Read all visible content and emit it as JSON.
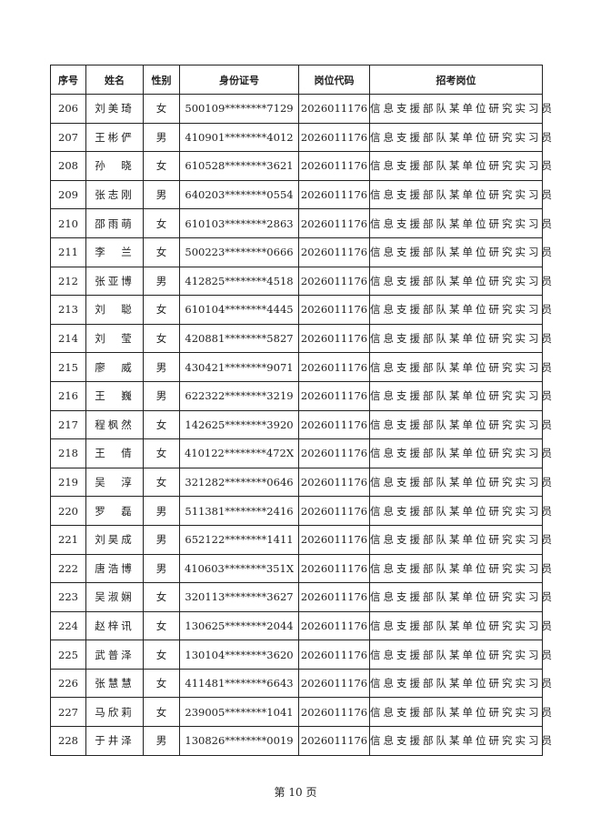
{
  "headers": [
    "序号",
    "姓名",
    "性别",
    "身份证号",
    "岗位代码",
    "招考岗位"
  ],
  "rows": [
    [
      "206",
      "刘美琦",
      "女",
      "500109********7129",
      "2026011176",
      "信息支援部队某单位研究实习员"
    ],
    [
      "207",
      "王彬俨",
      "男",
      "410901********4012",
      "2026011176",
      "信息支援部队某单位研究实习员"
    ],
    [
      "208",
      "孙　晓",
      "女",
      "610528********3621",
      "2026011176",
      "信息支援部队某单位研究实习员"
    ],
    [
      "209",
      "张志刚",
      "男",
      "640203********0554",
      "2026011176",
      "信息支援部队某单位研究实习员"
    ],
    [
      "210",
      "邵雨萌",
      "女",
      "610103********2863",
      "2026011176",
      "信息支援部队某单位研究实习员"
    ],
    [
      "211",
      "李　兰",
      "女",
      "500223********0666",
      "2026011176",
      "信息支援部队某单位研究实习员"
    ],
    [
      "212",
      "张亚博",
      "男",
      "412825********4518",
      "2026011176",
      "信息支援部队某单位研究实习员"
    ],
    [
      "213",
      "刘　聪",
      "女",
      "610104********4445",
      "2026011176",
      "信息支援部队某单位研究实习员"
    ],
    [
      "214",
      "刘　莹",
      "女",
      "420881********5827",
      "2026011176",
      "信息支援部队某单位研究实习员"
    ],
    [
      "215",
      "廖　威",
      "男",
      "430421********9071",
      "2026011176",
      "信息支援部队某单位研究实习员"
    ],
    [
      "216",
      "王　巍",
      "男",
      "622322********3219",
      "2026011176",
      "信息支援部队某单位研究实习员"
    ],
    [
      "217",
      "程枫然",
      "女",
      "142625********3920",
      "2026011176",
      "信息支援部队某单位研究实习员"
    ],
    [
      "218",
      "王　倩",
      "女",
      "410122********472X",
      "2026011176",
      "信息支援部队某单位研究实习员"
    ],
    [
      "219",
      "吴　淳",
      "女",
      "321282********0646",
      "2026011176",
      "信息支援部队某单位研究实习员"
    ],
    [
      "220",
      "罗　磊",
      "男",
      "511381********2416",
      "2026011176",
      "信息支援部队某单位研究实习员"
    ],
    [
      "221",
      "刘昊成",
      "男",
      "652122********1411",
      "2026011176",
      "信息支援部队某单位研究实习员"
    ],
    [
      "222",
      "唐浩博",
      "男",
      "410603********351X",
      "2026011176",
      "信息支援部队某单位研究实习员"
    ],
    [
      "223",
      "吴淑娴",
      "女",
      "320113********3627",
      "2026011176",
      "信息支援部队某单位研究实习员"
    ],
    [
      "224",
      "赵梓讯",
      "女",
      "130625********2044",
      "2026011176",
      "信息支援部队某单位研究实习员"
    ],
    [
      "225",
      "武普泽",
      "女",
      "130104********3620",
      "2026011176",
      "信息支援部队某单位研究实习员"
    ],
    [
      "226",
      "张慧慧",
      "女",
      "411481********6643",
      "2026011176",
      "信息支援部队某单位研究实习员"
    ],
    [
      "227",
      "马欣莉",
      "女",
      "239005********1041",
      "2026011176",
      "信息支援部队某单位研究实习员"
    ],
    [
      "228",
      "于井泽",
      "男",
      "130826********0019",
      "2026011176",
      "信息支援部队某单位研究实习员"
    ]
  ],
  "footer": "第 10 页"
}
